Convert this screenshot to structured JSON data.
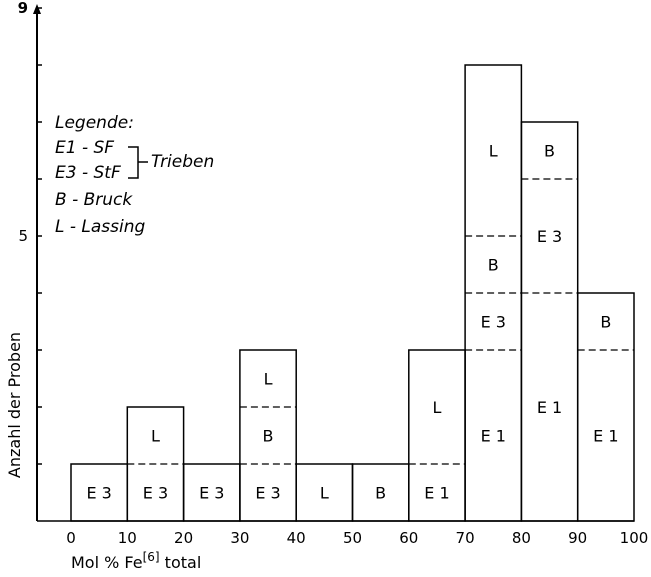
{
  "chart_data": {
    "type": "bar",
    "subtype": "stacked-histogram",
    "xlabel_main": "Mol % Fe",
    "xlabel_sup": "[6]",
    "xlabel_tail": " total",
    "ylabel": "Anzahl der Proben",
    "xlim": [
      0,
      100
    ],
    "ylim": [
      0,
      9
    ],
    "x_ticks": [
      "0",
      "10",
      "20",
      "30",
      "40",
      "50",
      "60",
      "70",
      "80",
      "90",
      "100"
    ],
    "y_ticks": [
      {
        "value": 5,
        "label": "5"
      },
      {
        "value": 9,
        "label": "9"
      }
    ],
    "legend": {
      "title": "Legende:",
      "entries": [
        "E1 - SF",
        "E3 - StF",
        "B - Bruck",
        "L - Lassing"
      ],
      "group_label": "Trieben",
      "position": "top-left"
    },
    "bins": [
      {
        "range": [
          0,
          10
        ],
        "segments": [
          {
            "label": "E3",
            "count": 1
          }
        ]
      },
      {
        "range": [
          10,
          20
        ],
        "segments": [
          {
            "label": "E3",
            "count": 1
          },
          {
            "label": "L",
            "count": 1
          }
        ]
      },
      {
        "range": [
          20,
          30
        ],
        "segments": [
          {
            "label": "E3",
            "count": 1
          }
        ]
      },
      {
        "range": [
          30,
          40
        ],
        "segments": [
          {
            "label": "E3",
            "count": 1
          },
          {
            "label": "B",
            "count": 1
          },
          {
            "label": "L",
            "count": 1
          }
        ]
      },
      {
        "range": [
          40,
          50
        ],
        "segments": [
          {
            "label": "L",
            "count": 1
          }
        ]
      },
      {
        "range": [
          50,
          60
        ],
        "segments": [
          {
            "label": "B",
            "count": 1
          }
        ]
      },
      {
        "range": [
          60,
          70
        ],
        "segments": [
          {
            "label": "E1",
            "count": 1
          },
          {
            "label": "L",
            "count": 2
          }
        ]
      },
      {
        "range": [
          70,
          80
        ],
        "segments": [
          {
            "label": "E1",
            "count": 3
          },
          {
            "label": "E3",
            "count": 1
          },
          {
            "label": "B",
            "count": 1
          },
          {
            "label": "L",
            "count": 3
          }
        ]
      },
      {
        "range": [
          80,
          90
        ],
        "segments": [
          {
            "label": "E1",
            "count": 4
          },
          {
            "label": "E3",
            "count": 2
          },
          {
            "label": "B",
            "count": 1
          }
        ]
      },
      {
        "range": [
          90,
          100
        ],
        "segments": [
          {
            "label": "E1",
            "count": 3
          },
          {
            "label": "B",
            "count": 1
          }
        ]
      }
    ]
  }
}
